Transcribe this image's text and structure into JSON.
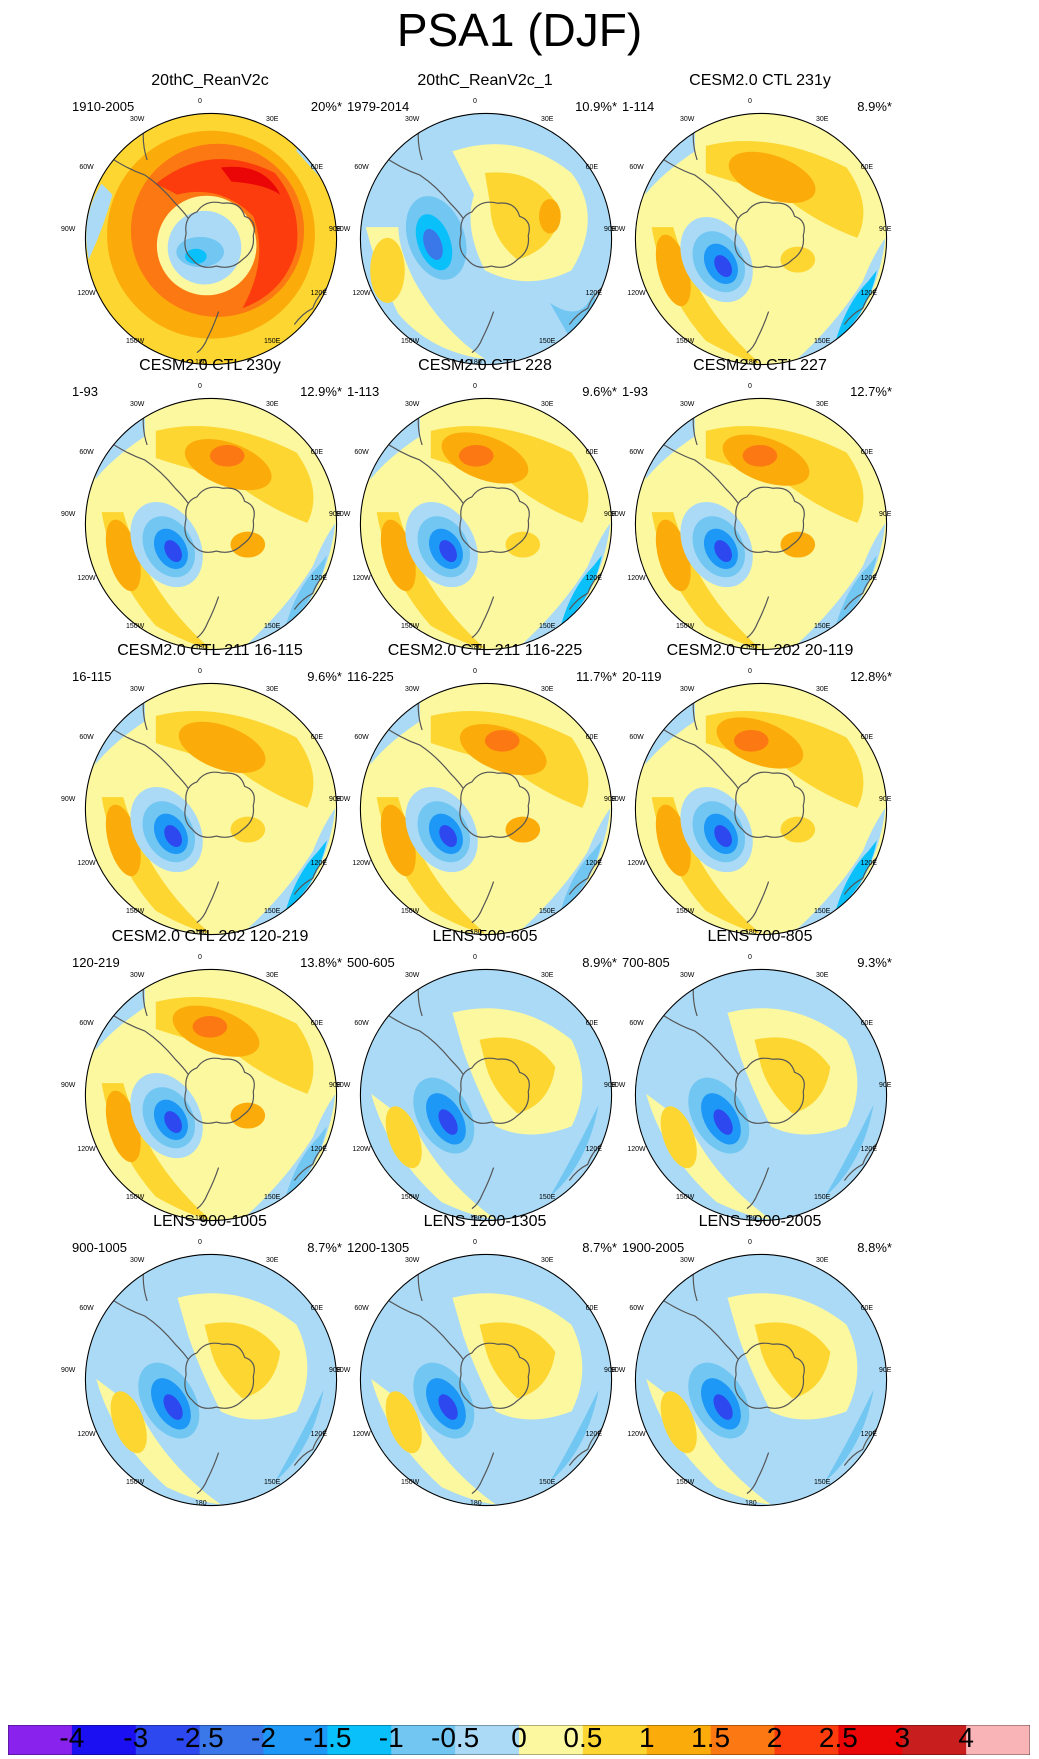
{
  "figure": {
    "title": "PSA1 (DJF)"
  },
  "longitude_labels": [
    "0",
    "30E",
    "60E",
    "90E",
    "120E",
    "150E",
    "180",
    "150W",
    "120W",
    "90W",
    "60W",
    "30W"
  ],
  "panels": [
    {
      "title": "20thC_ReanV2c",
      "years": "1910-2005",
      "percent": "20%*",
      "pattern": "reanv2c"
    },
    {
      "title": "20thC_ReanV2c_1",
      "years": "1979-2014",
      "percent": "10.9%*",
      "pattern": "reanv2c1"
    },
    {
      "title": "CESM2.0 CTL 231y",
      "years": "1-114",
      "percent": "8.9%*",
      "pattern": "psa"
    },
    {
      "title": "CESM2.0 CTL 230y",
      "years": "1-93",
      "percent": "12.9%*",
      "pattern": "psa"
    },
    {
      "title": "CESM2.0 CTL 228",
      "years": "1-113",
      "percent": "9.6%*",
      "pattern": "psa"
    },
    {
      "title": "CESM2.0 CTL 227",
      "years": "1-93",
      "percent": "12.7%*",
      "pattern": "psa"
    },
    {
      "title": "CESM2.0 CTL 211 16-115",
      "years": "16-115",
      "percent": "9.6%*",
      "pattern": "psa"
    },
    {
      "title": "CESM2.0 CTL 211 116-225",
      "years": "116-225",
      "percent": "11.7%*",
      "pattern": "psa"
    },
    {
      "title": "CESM2.0 CTL 202 20-119",
      "years": "20-119",
      "percent": "12.8%*",
      "pattern": "psa"
    },
    {
      "title": "CESM2.0 CTL 202 120-219",
      "years": "120-219",
      "percent": "13.8%*",
      "pattern": "psa"
    },
    {
      "title": "LENS 500-605",
      "years": "500-605",
      "percent": "8.9%*",
      "pattern": "lens"
    },
    {
      "title": "LENS 700-805",
      "years": "700-805",
      "percent": "9.3%*",
      "pattern": "lens"
    },
    {
      "title": "LENS 900-1005",
      "years": "900-1005",
      "percent": "8.7%*",
      "pattern": "lens"
    },
    {
      "title": "LENS 1200-1305",
      "years": "1200-1305",
      "percent": "8.7%*",
      "pattern": "lens"
    },
    {
      "title": "LENS 1900-2005",
      "years": "1900-2005",
      "percent": "8.8%*",
      "pattern": "lens"
    }
  ],
  "colorbar": {
    "colors": [
      "#8a22ee",
      "#1a10f2",
      "#2c48ee",
      "#3a78ea",
      "#1e98f6",
      "#0ac0fa",
      "#72c6f2",
      "#aadaf6",
      "#fcf8a0",
      "#fdd632",
      "#fcac0a",
      "#fc7812",
      "#fc3c0c",
      "#ea0606",
      "#c81e1e",
      "#f8b4b6"
    ],
    "labels": [
      "-4",
      "-3",
      "-2.5",
      "-2",
      "-1.5",
      "-1",
      "-0.5",
      "0",
      "0.5",
      "1",
      "1.5",
      "2",
      "2.5",
      "3",
      "4"
    ]
  },
  "colors": {
    "coastline": "#555555",
    "circle": "#000000"
  }
}
